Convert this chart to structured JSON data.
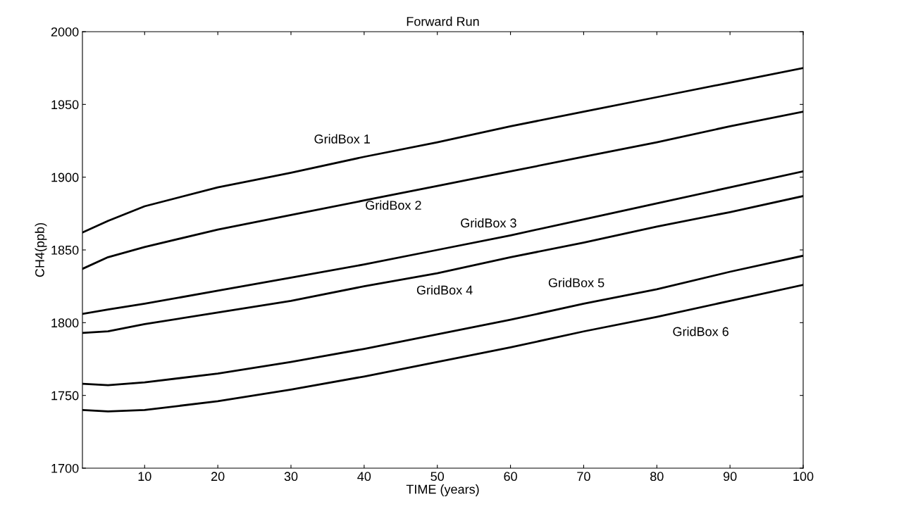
{
  "chart_data": {
    "type": "line",
    "title": "Forward Run",
    "xlabel": "TIME (years)",
    "ylabel": "CH4(ppb)",
    "x": [
      1.5,
      5,
      10,
      20,
      30,
      40,
      50,
      60,
      70,
      80,
      90,
      100
    ],
    "series": [
      {
        "name": "GridBox 1",
        "color": "#000000",
        "values": [
          1862,
          1870,
          1880,
          1893,
          1903,
          1914,
          1924,
          1935,
          1945,
          1955,
          1965,
          1975
        ]
      },
      {
        "name": "GridBox 2",
        "color": "#000000",
        "values": [
          1837,
          1845,
          1852,
          1864,
          1874,
          1884,
          1894,
          1904,
          1914,
          1924,
          1935,
          1945
        ]
      },
      {
        "name": "GridBox 3",
        "color": "#000000",
        "values": [
          1806,
          1809,
          1813,
          1822,
          1831,
          1840,
          1850,
          1860,
          1871,
          1882,
          1893,
          1904
        ]
      },
      {
        "name": "GridBox 4",
        "color": "#000000",
        "values": [
          1793,
          1794,
          1799,
          1807,
          1815,
          1825,
          1834,
          1845,
          1855,
          1866,
          1876,
          1887
        ]
      },
      {
        "name": "GridBox 5",
        "color": "#000000",
        "values": [
          1758,
          1757,
          1759,
          1765,
          1773,
          1782,
          1792,
          1802,
          1813,
          1823,
          1835,
          1846
        ]
      },
      {
        "name": "GridBox 6",
        "color": "#000000",
        "values": [
          1740,
          1739,
          1740,
          1746,
          1754,
          1763,
          1773,
          1783,
          1794,
          1804,
          1815,
          1826
        ]
      }
    ],
    "xlim": [
      1.5,
      100
    ],
    "xticks": [
      10,
      20,
      30,
      40,
      50,
      60,
      70,
      80,
      90,
      100
    ],
    "ylim": [
      1700,
      2000
    ],
    "yticks": [
      1700,
      1750,
      1800,
      1850,
      1900,
      1950,
      2000
    ],
    "grid": false,
    "legend": false,
    "marker": "none",
    "line_style": "solid"
  }
}
